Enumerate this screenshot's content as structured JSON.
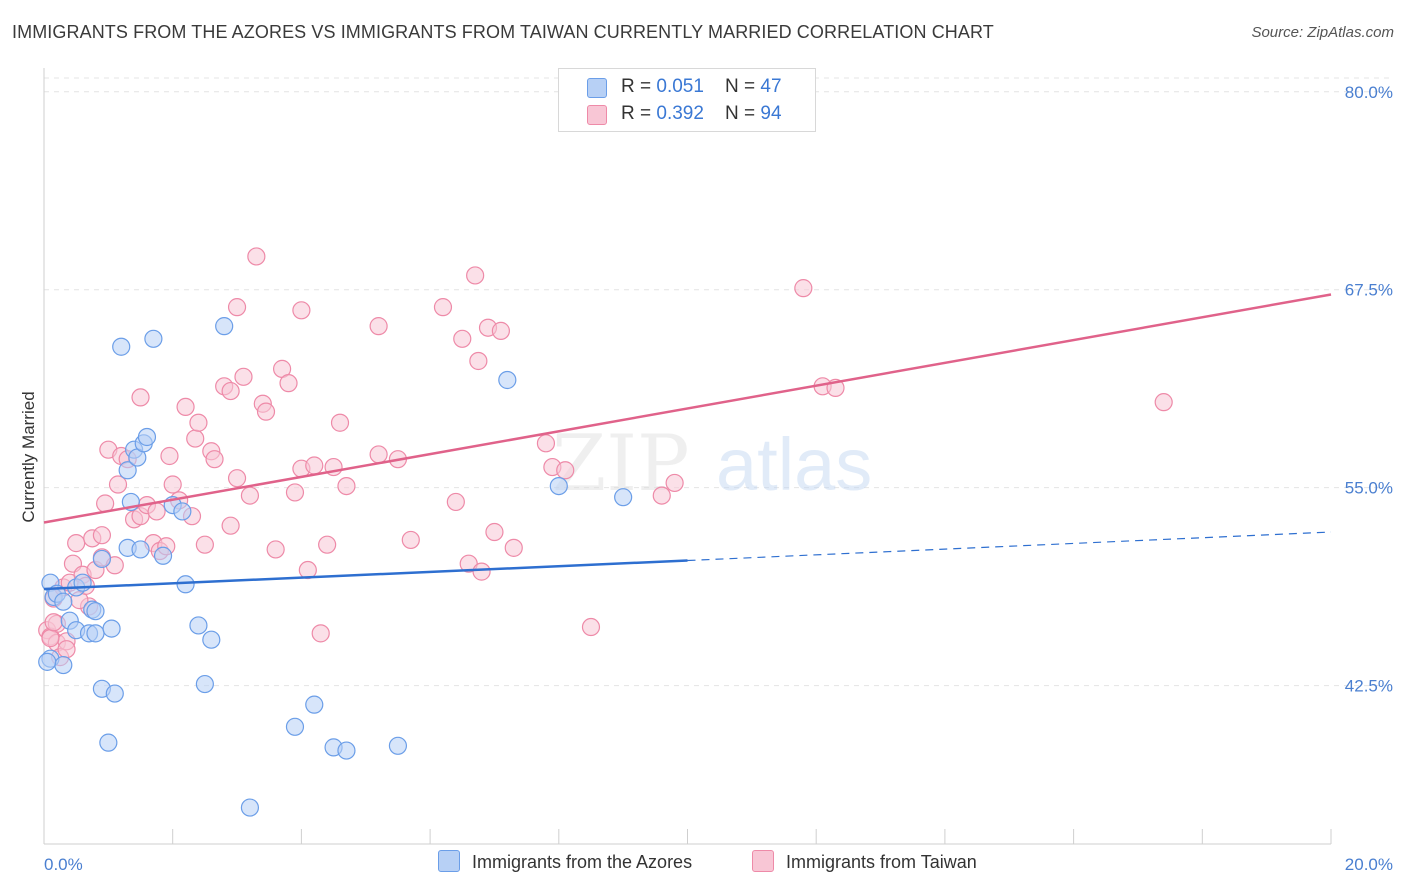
{
  "title": "IMMIGRANTS FROM THE AZORES VS IMMIGRANTS FROM TAIWAN CURRENTLY MARRIED CORRELATION CHART",
  "source": "Source: ZipAtlas.com",
  "watermark": {
    "zip": "ZIP",
    "atlas": "atlas"
  },
  "legend_top": {
    "rows": [
      {
        "r_label": "R = ",
        "r_value": "0.051",
        "n_label": "N = ",
        "n_value": "47"
      },
      {
        "r_label": "R = ",
        "r_value": "0.392",
        "n_label": "N = ",
        "n_value": "94"
      }
    ]
  },
  "legend_bottom": {
    "azores": "Immigrants from the Azores",
    "taiwan": "Immigrants from Taiwan"
  },
  "chart_data": {
    "type": "scatter",
    "ylabel": "Currently Married",
    "xlim": [
      0,
      20
    ],
    "ylim": [
      32.5,
      81.5
    ],
    "y_ticks": [
      {
        "v": 42.5,
        "label": "42.5%"
      },
      {
        "v": 55.0,
        "label": "55.0%"
      },
      {
        "v": 67.5,
        "label": "67.5%"
      },
      {
        "v": 80.0,
        "label": "80.0%"
      }
    ],
    "x_tick_labels": {
      "left": "0.0%",
      "right": "20.0%"
    },
    "colors": {
      "azores": "#6b9ee8",
      "azores_fill": "#b7d0f5",
      "taiwan": "#ee8aa8",
      "taiwan_fill": "#f8c6d5",
      "azores_line": "#2e6fd0",
      "taiwan_line": "#e0628a"
    },
    "series": [
      {
        "name": "Immigrants from the Azores",
        "key": "azores",
        "trend": {
          "x0": 0,
          "y0": 48.6,
          "x1": 10,
          "y1": 50.4,
          "dash_to": 20,
          "dash_y": 52.2
        },
        "points": [
          [
            0.1,
            49.0
          ],
          [
            0.15,
            48.1
          ],
          [
            0.2,
            48.3
          ],
          [
            0.3,
            47.8
          ],
          [
            0.4,
            46.6
          ],
          [
            0.5,
            48.7
          ],
          [
            0.5,
            46.0
          ],
          [
            0.6,
            49.0
          ],
          [
            0.7,
            45.8
          ],
          [
            0.75,
            47.3
          ],
          [
            0.8,
            47.2
          ],
          [
            0.8,
            45.8
          ],
          [
            0.9,
            50.5
          ],
          [
            0.9,
            42.3
          ],
          [
            1.0,
            38.9
          ],
          [
            1.05,
            46.1
          ],
          [
            1.1,
            42.0
          ],
          [
            1.2,
            63.9
          ],
          [
            1.3,
            56.1
          ],
          [
            1.3,
            51.2
          ],
          [
            1.35,
            54.1
          ],
          [
            1.4,
            57.4
          ],
          [
            1.45,
            56.9
          ],
          [
            1.5,
            51.1
          ],
          [
            1.55,
            57.8
          ],
          [
            1.6,
            58.2
          ],
          [
            1.7,
            64.4
          ],
          [
            1.85,
            50.7
          ],
          [
            2.0,
            53.9
          ],
          [
            2.15,
            53.5
          ],
          [
            2.2,
            48.9
          ],
          [
            2.4,
            46.3
          ],
          [
            2.5,
            42.6
          ],
          [
            2.6,
            45.4
          ],
          [
            2.8,
            65.2
          ],
          [
            3.2,
            34.8
          ],
          [
            3.9,
            39.9
          ],
          [
            4.2,
            41.3
          ],
          [
            4.5,
            38.6
          ],
          [
            4.7,
            38.4
          ],
          [
            5.5,
            38.7
          ],
          [
            7.2,
            61.8
          ],
          [
            8.0,
            55.1
          ],
          [
            9.0,
            54.4
          ],
          [
            0.1,
            44.2
          ],
          [
            0.3,
            43.8
          ],
          [
            0.05,
            44.0
          ]
        ]
      },
      {
        "name": "Immigrants from Taiwan",
        "key": "taiwan",
        "trend": {
          "x0": 0,
          "y0": 52.8,
          "x1": 20,
          "y1": 67.2
        },
        "points": [
          [
            0.05,
            46.0
          ],
          [
            0.1,
            45.6
          ],
          [
            0.15,
            48.0
          ],
          [
            0.2,
            46.4
          ],
          [
            0.2,
            45.2
          ],
          [
            0.3,
            48.7
          ],
          [
            0.35,
            45.3
          ],
          [
            0.4,
            49.0
          ],
          [
            0.45,
            50.2
          ],
          [
            0.5,
            51.5
          ],
          [
            0.6,
            49.5
          ],
          [
            0.7,
            47.5
          ],
          [
            0.75,
            51.8
          ],
          [
            0.8,
            49.8
          ],
          [
            0.9,
            52.0
          ],
          [
            0.9,
            50.6
          ],
          [
            0.95,
            54.0
          ],
          [
            1.0,
            57.4
          ],
          [
            1.1,
            50.1
          ],
          [
            1.15,
            55.2
          ],
          [
            1.2,
            57.0
          ],
          [
            1.3,
            56.8
          ],
          [
            1.4,
            53.0
          ],
          [
            1.5,
            53.2
          ],
          [
            1.5,
            60.7
          ],
          [
            1.6,
            53.9
          ],
          [
            1.7,
            51.5
          ],
          [
            1.75,
            53.5
          ],
          [
            1.8,
            51.0
          ],
          [
            1.9,
            51.3
          ],
          [
            1.95,
            57.0
          ],
          [
            2.0,
            55.2
          ],
          [
            2.1,
            54.2
          ],
          [
            2.2,
            60.1
          ],
          [
            2.3,
            53.2
          ],
          [
            2.35,
            58.1
          ],
          [
            2.4,
            59.1
          ],
          [
            2.5,
            51.4
          ],
          [
            2.6,
            57.3
          ],
          [
            2.65,
            56.8
          ],
          [
            2.8,
            61.4
          ],
          [
            2.9,
            61.1
          ],
          [
            2.9,
            52.6
          ],
          [
            3.0,
            66.4
          ],
          [
            3.0,
            55.6
          ],
          [
            3.1,
            62.0
          ],
          [
            3.2,
            54.5
          ],
          [
            3.3,
            69.6
          ],
          [
            3.4,
            60.3
          ],
          [
            3.45,
            59.8
          ],
          [
            3.6,
            51.1
          ],
          [
            3.7,
            62.5
          ],
          [
            3.8,
            61.6
          ],
          [
            3.9,
            54.7
          ],
          [
            4.0,
            66.2
          ],
          [
            4.0,
            56.2
          ],
          [
            4.1,
            49.8
          ],
          [
            4.2,
            56.4
          ],
          [
            4.3,
            45.8
          ],
          [
            4.4,
            51.4
          ],
          [
            4.5,
            56.3
          ],
          [
            4.6,
            59.1
          ],
          [
            4.7,
            55.1
          ],
          [
            5.2,
            57.1
          ],
          [
            5.2,
            65.2
          ],
          [
            5.5,
            56.8
          ],
          [
            5.7,
            51.7
          ],
          [
            6.2,
            66.4
          ],
          [
            6.4,
            54.1
          ],
          [
            6.5,
            64.4
          ],
          [
            6.6,
            50.2
          ],
          [
            6.7,
            68.4
          ],
          [
            6.75,
            63.0
          ],
          [
            6.8,
            49.7
          ],
          [
            6.9,
            65.1
          ],
          [
            7.0,
            52.2
          ],
          [
            7.1,
            64.9
          ],
          [
            7.3,
            51.2
          ],
          [
            7.8,
            57.8
          ],
          [
            7.9,
            56.3
          ],
          [
            8.1,
            56.1
          ],
          [
            8.5,
            46.2
          ],
          [
            9.6,
            54.5
          ],
          [
            9.8,
            55.3
          ],
          [
            11.8,
            67.6
          ],
          [
            12.1,
            61.4
          ],
          [
            12.3,
            61.3
          ],
          [
            17.4,
            60.4
          ],
          [
            0.1,
            45.5
          ],
          [
            0.25,
            44.3
          ],
          [
            0.15,
            46.5
          ],
          [
            0.35,
            44.8
          ],
          [
            0.55,
            47.9
          ],
          [
            0.65,
            48.8
          ]
        ]
      }
    ]
  }
}
